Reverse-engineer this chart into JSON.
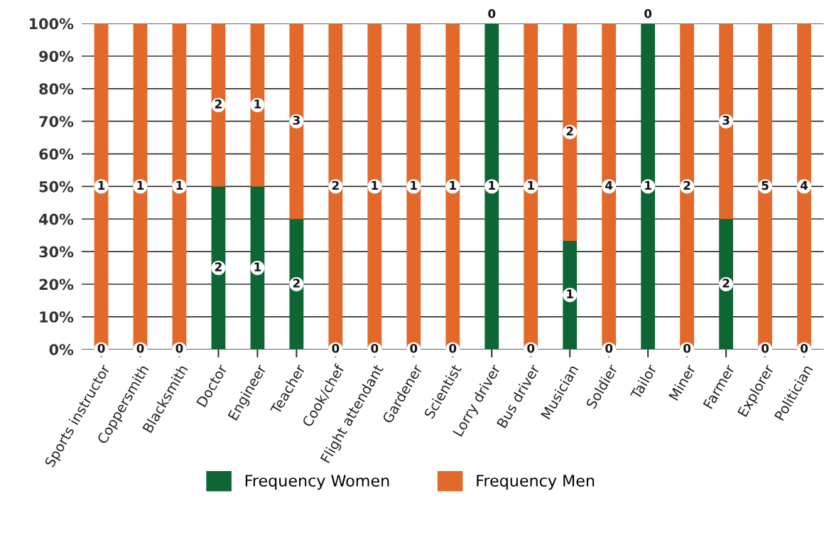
{
  "chart_data": {
    "type": "bar",
    "stacked": true,
    "categories": [
      "Sports instructor",
      "Coppersmith",
      "Blacksmith",
      "Doctor",
      "Engineer",
      "Teacher",
      "Cook/chef",
      "Flight attendant",
      "Gardener",
      "Scientist",
      "Lorry driver",
      "Bus driver",
      "Musician",
      "Soldier",
      "Tailor",
      "Miner",
      "Farmer",
      "Explorer",
      "Politician"
    ],
    "series": [
      {
        "name": "Frequency Women",
        "color": "#0e6635",
        "values": [
          0,
          0,
          0,
          50,
          50,
          40,
          0,
          0,
          0,
          0,
          100,
          0,
          33.3,
          0,
          100,
          0,
          40,
          0,
          0
        ]
      },
      {
        "name": "Frequency Men",
        "color": "#e2692a",
        "values": [
          100,
          100,
          100,
          50,
          50,
          60,
          100,
          100,
          100,
          100,
          0,
          100,
          66.7,
          100,
          0,
          100,
          60,
          100,
          100
        ]
      }
    ],
    "annotations": [
      {
        "text": "0",
        "x": "Sports instructor",
        "y": 0
      },
      {
        "text": "1",
        "x": "Sports instructor",
        "y": 50
      },
      {
        "text": "0",
        "x": "Coppersmith",
        "y": 0
      },
      {
        "text": "1",
        "x": "Coppersmith",
        "y": 50
      },
      {
        "text": "0",
        "x": "Blacksmith",
        "y": 0
      },
      {
        "text": "1",
        "x": "Blacksmith",
        "y": 50
      },
      {
        "text": "2",
        "x": "Doctor",
        "y": 25
      },
      {
        "text": "2",
        "x": "Doctor",
        "y": 75
      },
      {
        "text": "1",
        "x": "Engineer",
        "y": 25
      },
      {
        "text": "1",
        "x": "Engineer",
        "y": 75
      },
      {
        "text": "2",
        "x": "Teacher",
        "y": 20
      },
      {
        "text": "3",
        "x": "Teacher",
        "y": 70
      },
      {
        "text": "0",
        "x": "Cook/chef",
        "y": 0
      },
      {
        "text": "2",
        "x": "Cook/chef",
        "y": 50
      },
      {
        "text": "0",
        "x": "Flight attendant",
        "y": 0
      },
      {
        "text": "1",
        "x": "Flight attendant",
        "y": 50
      },
      {
        "text": "0",
        "x": "Gardener",
        "y": 0
      },
      {
        "text": "1",
        "x": "Gardener",
        "y": 50
      },
      {
        "text": "0",
        "x": "Scientist",
        "y": 0
      },
      {
        "text": "1",
        "x": "Scientist",
        "y": 50
      },
      {
        "text": "1",
        "x": "Lorry driver",
        "y": 50
      },
      {
        "text": "0",
        "x": "Lorry driver",
        "y": 100
      },
      {
        "text": "0",
        "x": "Bus driver",
        "y": 0
      },
      {
        "text": "1",
        "x": "Bus driver",
        "y": 50
      },
      {
        "text": "1",
        "x": "Musician",
        "y": 16.7
      },
      {
        "text": "2",
        "x": "Musician",
        "y": 66.7
      },
      {
        "text": "0",
        "x": "Soldier",
        "y": 0
      },
      {
        "text": "4",
        "x": "Soldier",
        "y": 50
      },
      {
        "text": "1",
        "x": "Tailor",
        "y": 50
      },
      {
        "text": "0",
        "x": "Tailor",
        "y": 100
      },
      {
        "text": "0",
        "x": "Miner",
        "y": 0
      },
      {
        "text": "2",
        "x": "Miner",
        "y": 50
      },
      {
        "text": "2",
        "x": "Farmer",
        "y": 20
      },
      {
        "text": "3",
        "x": "Farmer",
        "y": 70
      },
      {
        "text": "0",
        "x": "Explorer",
        "y": 0
      },
      {
        "text": "5",
        "x": "Explorer",
        "y": 50
      },
      {
        "text": "0",
        "x": "Politician",
        "y": 0
      },
      {
        "text": "4",
        "x": "Politician",
        "y": 50
      }
    ],
    "ylim": [
      0,
      100
    ],
    "yticks": [
      {
        "value": 0,
        "label": "0%"
      },
      {
        "value": 10,
        "label": "10%"
      },
      {
        "value": 20,
        "label": "20%"
      },
      {
        "value": 30,
        "label": "30%"
      },
      {
        "value": 40,
        "label": "40%"
      },
      {
        "value": 50,
        "label": "50%"
      },
      {
        "value": 60,
        "label": "60%"
      },
      {
        "value": 70,
        "label": "70%"
      },
      {
        "value": 80,
        "label": "80%"
      },
      {
        "value": 90,
        "label": "90%"
      },
      {
        "value": 100,
        "label": "100%"
      }
    ],
    "grid": "y",
    "legend": "bottom"
  }
}
